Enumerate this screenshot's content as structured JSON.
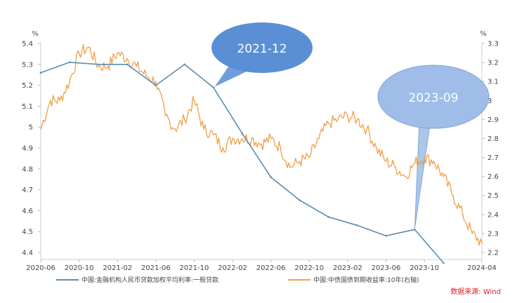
{
  "chart_data": {
    "type": "line",
    "source": "数据来源: Wind",
    "left_axis": {
      "unit": "%",
      "min": 4.4,
      "max": 5.4,
      "ticks": [
        "5.4",
        "5.3",
        "5.2",
        "5.1",
        "5",
        "4.9",
        "4.8",
        "4.7",
        "4.6",
        "4.5",
        "4.4"
      ]
    },
    "right_axis": {
      "unit": "%",
      "min": 2.2,
      "max": 3.3,
      "ticks": [
        "3.3",
        "3.2",
        "3.1",
        "3",
        "2.9",
        "2.8",
        "2.7",
        "2.6",
        "2.5",
        "2.4",
        "2.3",
        "2.2"
      ]
    },
    "x_ticks": [
      "2020-06",
      "2020-10",
      "2021-02",
      "2021-06",
      "2021-10",
      "2022-02",
      "2022-06",
      "2022-10",
      "2023-02",
      "2023-06",
      "2023-10",
      "2024-04"
    ],
    "x_tick_months": [
      0,
      4,
      8,
      12,
      16,
      20,
      24,
      28,
      32,
      36,
      40,
      46
    ],
    "x_range_months": [
      0,
      46
    ],
    "series": [
      {
        "name": "中国:金融机构人民币贷款加权平均利率:一般贷款",
        "axis": "left",
        "color": "#5b8db0",
        "x": [
          "2020-06",
          "2020-09",
          "2020-12",
          "2021-03",
          "2021-06",
          "2021-09",
          "2021-12",
          "2022-03",
          "2022-06",
          "2022-09",
          "2022-12",
          "2023-03",
          "2023-06",
          "2023-09",
          "2023-12"
        ],
        "y": [
          5.26,
          5.31,
          5.3,
          5.3,
          5.2,
          5.3,
          5.19,
          4.97,
          4.76,
          4.65,
          4.57,
          4.53,
          4.48,
          4.51,
          4.35
        ]
      },
      {
        "name": "中国:中债国债到期收益率:10年(右轴)",
        "axis": "right",
        "color": "#f0a04b",
        "x": [
          "2020-06",
          "2020-07",
          "2020-08",
          "2020-09",
          "2020-10",
          "2020-11",
          "2020-12",
          "2021-01",
          "2021-02",
          "2021-03",
          "2021-04",
          "2021-05",
          "2021-06",
          "2021-07",
          "2021-08",
          "2021-09",
          "2021-10",
          "2021-11",
          "2021-12",
          "2022-01",
          "2022-02",
          "2022-03",
          "2022-04",
          "2022-05",
          "2022-06",
          "2022-07",
          "2022-08",
          "2022-09",
          "2022-10",
          "2022-11",
          "2022-12",
          "2023-01",
          "2023-02",
          "2023-03",
          "2023-04",
          "2023-05",
          "2023-06",
          "2023-07",
          "2023-08",
          "2023-09",
          "2023-10",
          "2023-11",
          "2023-12",
          "2024-01",
          "2024-02",
          "2024-03",
          "2024-04"
        ],
        "y": [
          2.85,
          3.0,
          3.0,
          3.1,
          3.25,
          3.28,
          3.18,
          3.18,
          3.25,
          3.22,
          3.18,
          3.13,
          3.1,
          2.92,
          2.85,
          2.9,
          3.0,
          2.85,
          2.82,
          2.75,
          2.8,
          2.8,
          2.8,
          2.77,
          2.8,
          2.75,
          2.65,
          2.68,
          2.7,
          2.8,
          2.88,
          2.9,
          2.92,
          2.9,
          2.85,
          2.75,
          2.68,
          2.65,
          2.6,
          2.67,
          2.7,
          2.68,
          2.6,
          2.5,
          2.4,
          2.3,
          2.25
        ]
      }
    ],
    "annotations": [
      {
        "text": "2021-12",
        "x": "2021-12"
      },
      {
        "text": "2023-09",
        "x": "2023-09"
      }
    ],
    "grid": false,
    "legend_position": "bottom"
  }
}
